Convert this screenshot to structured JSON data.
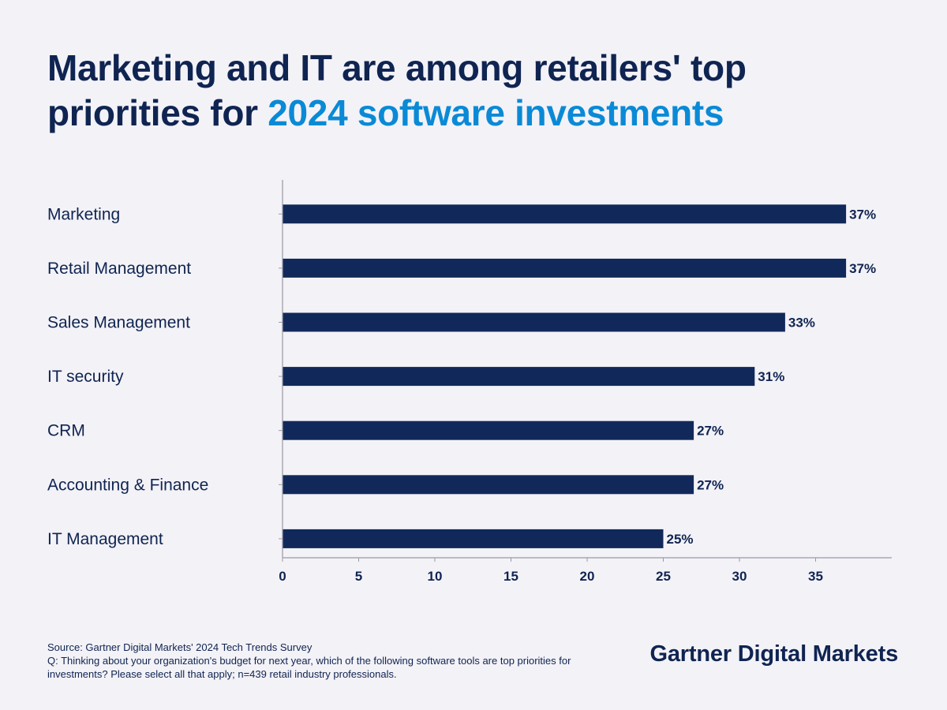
{
  "title": {
    "line1": "Marketing and IT are among retailers' top",
    "line2_prefix": "priorities for ",
    "line2_accent": "2024 software investments"
  },
  "chart_data": {
    "type": "bar",
    "orientation": "horizontal",
    "categories": [
      "Marketing",
      "Retail Management",
      "Sales Management",
      "IT security",
      "CRM",
      "Accounting & Finance",
      "IT Management"
    ],
    "values": [
      37,
      37,
      33,
      31,
      27,
      27,
      25
    ],
    "value_labels": [
      "37%",
      "37%",
      "33%",
      "31%",
      "27%",
      "27%",
      "25%"
    ],
    "xticks": [
      0,
      5,
      10,
      15,
      20,
      25,
      30,
      35
    ],
    "xlim": [
      0,
      40
    ],
    "xlabel": "",
    "ylabel": "",
    "grid": false
  },
  "footer": {
    "source": "Source: Gartner Digital Markets' 2024 Tech Trends Survey",
    "question": "Q: Thinking about your organization's budget for next year, which of the following software tools are top priorities for investments? Please select all that apply; n=439 retail industry professionals."
  },
  "brand": "Gartner Digital Markets",
  "colors": {
    "bar": "#11295a",
    "text": "#0f2451",
    "accent": "#0a8ad6",
    "axis": "#9a9aa6",
    "background": "#f3f2f7"
  }
}
